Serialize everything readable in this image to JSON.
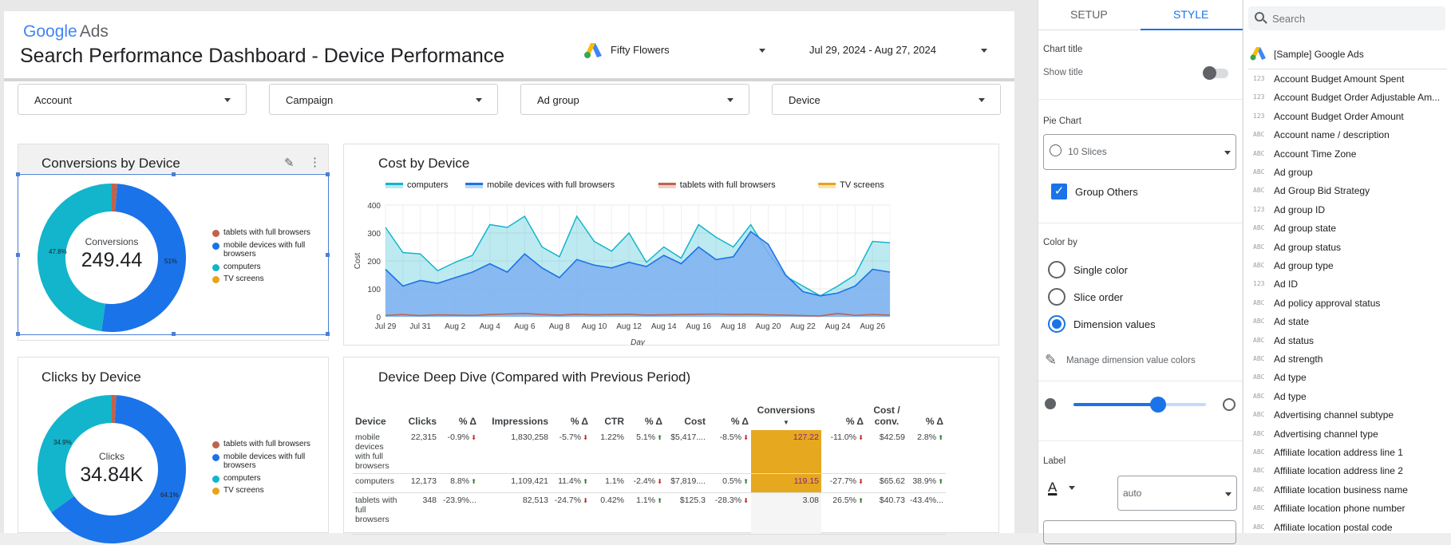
{
  "header": {
    "logo_google": "Google",
    "logo_ads": "Ads",
    "title": "Search Performance Dashboard - Device Performance",
    "account": "Fifty Flowers",
    "date_range": "Jul 29, 2024 - Aug 27, 2024"
  },
  "filters": [
    "Account",
    "Campaign",
    "Ad group",
    "Device"
  ],
  "colors": {
    "tablets": "#c0634a",
    "mobile": "#1a73e8",
    "computers": "#12b5cb",
    "tv": "#e8a317"
  },
  "conversions_card": {
    "title": "Conversions by Device",
    "center_label": "Conversions",
    "center_value": "249.44",
    "pct_left": "47.8%",
    "pct_right": "51%",
    "legend": [
      "tablets with full browsers",
      "mobile devices with full browsers",
      "computers",
      "TV screens"
    ]
  },
  "clicks_card": {
    "title": "Clicks by Device",
    "center_label": "Clicks",
    "center_value": "34.84K",
    "pct_left": "34.9%",
    "pct_right": "64.1%",
    "legend": [
      "tablets with full browsers",
      "mobile devices with full browsers",
      "computers",
      "TV screens"
    ]
  },
  "cost_card": {
    "title": "Cost by Device",
    "xlabel": "Day",
    "ylabel": "Cost"
  },
  "deep_dive": {
    "title": "Device Deep Dive (Compared with Previous Period)",
    "columns": [
      "Device",
      "Clicks",
      "% Δ",
      "Impressions",
      "% Δ",
      "CTR",
      "% Δ",
      "Cost",
      "% Δ",
      "Conversions",
      "% Δ",
      "Cost / conv.",
      "% Δ"
    ],
    "rows": [
      {
        "device": "mobile devices with full browsers",
        "clicks": "22,315",
        "clicks_d": "-0.9%",
        "clicks_dir": "down",
        "impr": "1,830,258",
        "impr_d": "-5.7%",
        "impr_dir": "down",
        "ctr": "1.22%",
        "ctr_d": "5.1%",
        "ctr_dir": "up",
        "cost": "$5,417....",
        "cost_d": "-8.5%",
        "cost_dir": "down",
        "conv": "127.22",
        "conv_d": "-11.0%",
        "conv_dir": "down",
        "cpc": "$42.59",
        "cpc_d": "2.8%",
        "cpc_dir": "up"
      },
      {
        "device": "computers",
        "clicks": "12,173",
        "clicks_d": "8.8%",
        "clicks_dir": "up",
        "impr": "1,109,421",
        "impr_d": "11.4%",
        "impr_dir": "up",
        "ctr": "1.1%",
        "ctr_d": "-2.4%",
        "ctr_dir": "down",
        "cost": "$7,819....",
        "cost_d": "0.5%",
        "cost_dir": "up",
        "conv": "119.15",
        "conv_d": "-27.7%",
        "conv_dir": "down",
        "cpc": "$65.62",
        "cpc_d": "38.9%",
        "cpc_dir": "up"
      },
      {
        "device": "tablets with full browsers",
        "clicks": "348",
        "clicks_d": "-23.9%...",
        "clicks_dir": "",
        "impr": "82,513",
        "impr_d": "-24.7%",
        "impr_dir": "down",
        "ctr": "0.42%",
        "ctr_d": "1.1%",
        "ctr_dir": "up",
        "cost": "$125.3",
        "cost_d": "-28.3%",
        "cost_dir": "down",
        "conv": "3.08",
        "conv_d": "26.5%",
        "conv_dir": "up",
        "cpc": "$40.73",
        "cpc_d": "-43.4%...",
        "cpc_dir": ""
      }
    ]
  },
  "chart_data": [
    {
      "type": "area",
      "title": "Cost by Device",
      "xlabel": "Day",
      "ylabel": "Cost",
      "ylim": [
        0,
        400
      ],
      "yticks": [
        0,
        100,
        200,
        300,
        400
      ],
      "xticks": [
        "Jul 29",
        "Jul 31",
        "Aug 2",
        "Aug 4",
        "Aug 6",
        "Aug 8",
        "Aug 10",
        "Aug 12",
        "Aug 14",
        "Aug 16",
        "Aug 18",
        "Aug 20",
        "Aug 22",
        "Aug 24",
        "Aug 26"
      ],
      "x": [
        "Jul 29",
        "Jul 30",
        "Jul 31",
        "Aug 1",
        "Aug 2",
        "Aug 3",
        "Aug 4",
        "Aug 5",
        "Aug 6",
        "Aug 7",
        "Aug 8",
        "Aug 9",
        "Aug 10",
        "Aug 11",
        "Aug 12",
        "Aug 13",
        "Aug 14",
        "Aug 15",
        "Aug 16",
        "Aug 17",
        "Aug 18",
        "Aug 19",
        "Aug 20",
        "Aug 21",
        "Aug 22",
        "Aug 23",
        "Aug 24",
        "Aug 25",
        "Aug 26",
        "Aug 27"
      ],
      "grid": true,
      "legend_position": "top",
      "series": [
        {
          "name": "computers",
          "color": "#12b5cb",
          "values": [
            320,
            230,
            225,
            165,
            195,
            220,
            330,
            320,
            360,
            250,
            215,
            360,
            270,
            235,
            300,
            195,
            250,
            210,
            330,
            285,
            250,
            330,
            230,
            145,
            110,
            75,
            110,
            150,
            270,
            265
          ]
        },
        {
          "name": "mobile devices with full browsers",
          "color": "#1a73e8",
          "values": [
            170,
            110,
            130,
            120,
            140,
            160,
            190,
            160,
            225,
            175,
            140,
            205,
            185,
            175,
            195,
            180,
            220,
            190,
            250,
            205,
            215,
            305,
            260,
            150,
            90,
            75,
            85,
            110,
            170,
            160
          ]
        },
        {
          "name": "tablets with full browsers",
          "color": "#c0634a",
          "values": [
            5,
            8,
            4,
            7,
            6,
            5,
            8,
            10,
            12,
            8,
            6,
            9,
            7,
            8,
            9,
            6,
            7,
            8,
            9,
            10,
            8,
            9,
            7,
            6,
            4,
            3,
            12,
            5,
            8,
            6
          ]
        },
        {
          "name": "TV screens",
          "color": "#e8a317",
          "values": [
            0,
            0,
            0,
            0,
            0,
            0,
            0,
            0,
            0,
            0,
            0,
            0,
            0,
            0,
            0,
            0,
            0,
            0,
            0,
            0,
            0,
            0,
            0,
            0,
            0,
            0,
            0,
            0,
            0,
            0
          ]
        }
      ]
    },
    {
      "type": "pie",
      "title": "Conversions by Device",
      "categories": [
        "computers",
        "mobile devices with full browsers",
        "tablets with full browsers",
        "TV screens"
      ],
      "values": [
        47.8,
        51.0,
        1.2,
        0.0
      ]
    },
    {
      "type": "pie",
      "title": "Clicks by Device",
      "categories": [
        "computers",
        "mobile devices with full browsers",
        "tablets with full browsers",
        "TV screens"
      ],
      "values": [
        34.9,
        64.1,
        1.0,
        0.0
      ]
    }
  ],
  "style_panel": {
    "tab_setup": "SETUP",
    "tab_style": "STYLE",
    "chart_title_section": "Chart title",
    "show_title": "Show title",
    "pie_section": "Pie Chart",
    "slices_value": "10 Slices",
    "group_others": "Group Others",
    "color_by": "Color by",
    "single_color": "Single color",
    "slice_order": "Slice order",
    "dimension_values": "Dimension values",
    "manage_colors": "Manage dimension value colors",
    "label_section": "Label",
    "label_select": "auto"
  },
  "field_list": {
    "search_placeholder": "Search",
    "data_source": "[Sample] Google Ads",
    "fields": [
      {
        "type": "123",
        "name": "Account Budget Amount Spent"
      },
      {
        "type": "123",
        "name": "Account Budget Order Adjustable Am..."
      },
      {
        "type": "123",
        "name": "Account Budget Order Amount"
      },
      {
        "type": "ABC",
        "name": "Account name / description"
      },
      {
        "type": "ABC",
        "name": "Account Time Zone"
      },
      {
        "type": "ABC",
        "name": "Ad group"
      },
      {
        "type": "ABC",
        "name": "Ad Group Bid Strategy"
      },
      {
        "type": "123",
        "name": "Ad group ID"
      },
      {
        "type": "ABC",
        "name": "Ad group state"
      },
      {
        "type": "ABC",
        "name": "Ad group status"
      },
      {
        "type": "ABC",
        "name": "Ad group type"
      },
      {
        "type": "123",
        "name": "Ad ID"
      },
      {
        "type": "ABC",
        "name": "Ad policy approval status"
      },
      {
        "type": "ABC",
        "name": "Ad state"
      },
      {
        "type": "ABC",
        "name": "Ad status"
      },
      {
        "type": "ABC",
        "name": "Ad strength"
      },
      {
        "type": "ABC",
        "name": "Ad type"
      },
      {
        "type": "ABC",
        "name": "Ad type"
      },
      {
        "type": "ABC",
        "name": "Advertising channel subtype"
      },
      {
        "type": "ABC",
        "name": "Advertising channel type"
      },
      {
        "type": "ABC",
        "name": "Affiliate location address line 1"
      },
      {
        "type": "ABC",
        "name": "Affiliate location address line 2"
      },
      {
        "type": "ABC",
        "name": "Affiliate location business name"
      },
      {
        "type": "ABC",
        "name": "Affiliate location phone number"
      },
      {
        "type": "ABC",
        "name": "Affiliate location postal code"
      }
    ]
  }
}
